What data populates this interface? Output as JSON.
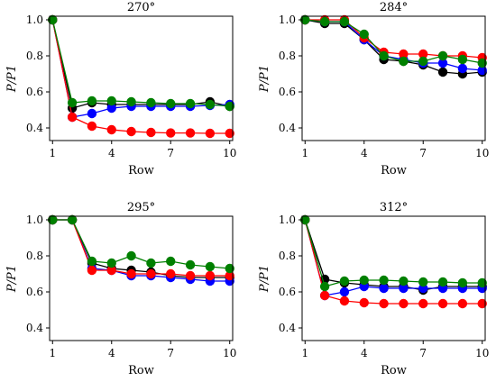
{
  "chart_data": [
    {
      "type": "line",
      "title": "270°",
      "xlabel": "Row",
      "ylabel": "P/P1",
      "x": [
        1,
        2,
        3,
        4,
        5,
        6,
        7,
        8,
        9,
        10
      ],
      "xticks": [
        1,
        4,
        7,
        10
      ],
      "yticks": [
        0.4,
        0.6,
        0.8,
        1.0
      ],
      "ylim": [
        0.33,
        1.02
      ],
      "series": [
        {
          "color": "#000000",
          "values": [
            1.0,
            0.51,
            0.54,
            0.53,
            0.53,
            0.53,
            0.53,
            0.53,
            0.545,
            0.52
          ]
        },
        {
          "color": "#0000ff",
          "values": [
            1.0,
            0.46,
            0.48,
            0.51,
            0.52,
            0.52,
            0.52,
            0.52,
            0.525,
            0.53
          ]
        },
        {
          "color": "#ff0000",
          "values": [
            1.0,
            0.46,
            0.41,
            0.39,
            0.38,
            0.375,
            0.372,
            0.372,
            0.37,
            0.37
          ]
        },
        {
          "color": "#008000",
          "values": [
            1.0,
            0.54,
            0.55,
            0.55,
            0.545,
            0.54,
            0.535,
            0.535,
            0.53,
            0.52
          ]
        }
      ]
    },
    {
      "type": "line",
      "title": "284°",
      "xlabel": "Row",
      "ylabel": "P/P1",
      "x": [
        1,
        2,
        3,
        4,
        5,
        6,
        7,
        8,
        9,
        10
      ],
      "xticks": [
        1,
        4,
        7,
        10
      ],
      "yticks": [
        0.4,
        0.6,
        0.8,
        1.0
      ],
      "ylim": [
        0.33,
        1.02
      ],
      "series": [
        {
          "color": "#000000",
          "values": [
            1.0,
            0.98,
            0.98,
            0.89,
            0.78,
            0.77,
            0.75,
            0.71,
            0.7,
            0.71
          ]
        },
        {
          "color": "#0000ff",
          "values": [
            1.0,
            0.99,
            0.99,
            0.89,
            0.8,
            0.78,
            0.76,
            0.76,
            0.73,
            0.72
          ]
        },
        {
          "color": "#ff0000",
          "values": [
            1.0,
            1.0,
            1.0,
            0.9,
            0.82,
            0.81,
            0.81,
            0.8,
            0.8,
            0.79
          ]
        },
        {
          "color": "#008000",
          "values": [
            1.0,
            0.99,
            0.99,
            0.92,
            0.8,
            0.77,
            0.77,
            0.8,
            0.78,
            0.76
          ]
        }
      ]
    },
    {
      "type": "line",
      "title": "295°",
      "xlabel": "Row",
      "ylabel": "P/P1",
      "x": [
        1,
        2,
        3,
        4,
        5,
        6,
        7,
        8,
        9,
        10
      ],
      "xticks": [
        1,
        4,
        7,
        10
      ],
      "yticks": [
        0.4,
        0.6,
        0.8,
        1.0
      ],
      "ylim": [
        0.33,
        1.02
      ],
      "series": [
        {
          "color": "#000000",
          "values": [
            1.0,
            1.0,
            0.76,
            0.73,
            0.72,
            0.71,
            0.69,
            0.68,
            0.68,
            0.68
          ]
        },
        {
          "color": "#0000ff",
          "values": [
            1.0,
            1.0,
            0.73,
            0.72,
            0.69,
            0.69,
            0.68,
            0.67,
            0.66,
            0.66
          ]
        },
        {
          "color": "#ff0000",
          "values": [
            1.0,
            1.0,
            0.72,
            0.72,
            0.7,
            0.7,
            0.7,
            0.69,
            0.69,
            0.69
          ]
        },
        {
          "color": "#008000",
          "values": [
            1.0,
            1.0,
            0.77,
            0.76,
            0.8,
            0.76,
            0.77,
            0.75,
            0.74,
            0.73
          ]
        }
      ]
    },
    {
      "type": "line",
      "title": "312°",
      "xlabel": "Row",
      "ylabel": "P/P1",
      "x": [
        1,
        2,
        3,
        4,
        5,
        6,
        7,
        8,
        9,
        10
      ],
      "xticks": [
        1,
        4,
        7,
        10
      ],
      "yticks": [
        0.4,
        0.6,
        0.8,
        1.0
      ],
      "ylim": [
        0.33,
        1.02
      ],
      "series": [
        {
          "color": "#000000",
          "values": [
            1.0,
            0.67,
            0.65,
            0.64,
            0.63,
            0.63,
            0.61,
            0.63,
            0.63,
            0.63
          ]
        },
        {
          "color": "#0000ff",
          "values": [
            1.0,
            0.58,
            0.6,
            0.63,
            0.62,
            0.62,
            0.62,
            0.62,
            0.62,
            0.62
          ]
        },
        {
          "color": "#ff0000",
          "values": [
            1.0,
            0.58,
            0.55,
            0.54,
            0.535,
            0.535,
            0.535,
            0.535,
            0.535,
            0.535
          ]
        },
        {
          "color": "#008000",
          "values": [
            1.0,
            0.63,
            0.66,
            0.665,
            0.665,
            0.66,
            0.655,
            0.655,
            0.65,
            0.65
          ]
        }
      ]
    }
  ]
}
